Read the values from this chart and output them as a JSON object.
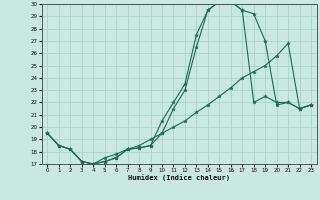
{
  "xlabel": "Humidex (Indice chaleur)",
  "bg_color": "#c8e8e0",
  "grid_color": "#a8cfc8",
  "line_color": "#1a6b5a",
  "xlim": [
    -0.5,
    23.5
  ],
  "ylim": [
    17,
    30
  ],
  "yticks": [
    17,
    18,
    19,
    20,
    21,
    22,
    23,
    24,
    25,
    26,
    27,
    28,
    29,
    30
  ],
  "xticks": [
    0,
    1,
    2,
    3,
    4,
    5,
    6,
    7,
    8,
    9,
    10,
    11,
    12,
    13,
    14,
    15,
    16,
    17,
    18,
    19,
    20,
    21,
    22,
    23
  ],
  "line1_x": [
    0,
    1,
    2,
    3,
    4,
    5,
    6,
    7,
    8,
    9,
    10,
    11,
    12,
    13,
    14,
    15,
    16,
    17,
    18,
    19,
    20,
    21,
    22,
    23
  ],
  "line1_y": [
    19.5,
    18.5,
    18.2,
    17.2,
    17.0,
    17.2,
    17.5,
    18.2,
    18.3,
    18.5,
    19.5,
    21.5,
    23.0,
    26.5,
    29.5,
    30.2,
    30.2,
    29.5,
    22.0,
    22.5,
    22.0,
    22.0,
    21.5,
    21.8
  ],
  "line2_x": [
    0,
    1,
    2,
    3,
    4,
    5,
    6,
    7,
    8,
    9,
    10,
    11,
    12,
    13,
    14,
    15,
    16,
    17,
    18,
    19,
    20,
    21,
    22,
    23
  ],
  "line2_y": [
    19.5,
    18.5,
    18.2,
    17.2,
    17.0,
    17.2,
    17.5,
    18.2,
    18.3,
    18.5,
    20.5,
    22.0,
    23.5,
    27.5,
    29.5,
    30.2,
    30.2,
    29.5,
    29.2,
    27.0,
    21.8,
    22.0,
    21.5,
    21.8
  ],
  "line3_x": [
    0,
    1,
    2,
    3,
    4,
    5,
    6,
    7,
    8,
    9,
    10,
    11,
    12,
    13,
    14,
    15,
    16,
    17,
    18,
    19,
    20,
    21,
    22,
    23
  ],
  "line3_y": [
    19.5,
    18.5,
    18.2,
    17.2,
    17.0,
    17.5,
    17.8,
    18.2,
    18.5,
    19.0,
    19.5,
    20.0,
    20.5,
    21.2,
    21.8,
    22.5,
    23.2,
    24.0,
    24.5,
    25.0,
    25.8,
    26.8,
    21.5,
    21.8
  ]
}
